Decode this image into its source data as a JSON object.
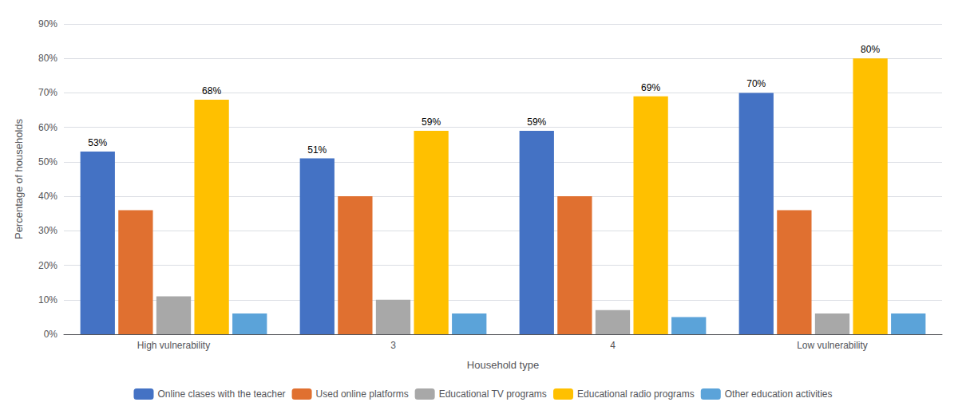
{
  "chart_data": {
    "type": "bar",
    "categories": [
      "High vulnerability",
      "3",
      "4",
      "Low vulnerability"
    ],
    "series": [
      {
        "name": "Online clases with the teacher",
        "color": "#4472C4",
        "values": [
          53,
          51,
          59,
          70
        ],
        "data_labels": true,
        "value_labels": [
          "53%",
          "51%",
          "59%",
          "70%"
        ]
      },
      {
        "name": "Used online platforms",
        "color": "#E07030",
        "values": [
          36,
          40,
          40,
          36
        ],
        "data_labels": false
      },
      {
        "name": "Educational TV programs",
        "color": "#A8A8A8",
        "values": [
          11,
          10,
          7,
          6
        ],
        "data_labels": false
      },
      {
        "name": "Educational radio programs",
        "color": "#FFC000",
        "values": [
          68,
          59,
          69,
          80
        ],
        "data_labels": true,
        "value_labels": [
          "68%",
          "59%",
          "69%",
          "80%"
        ]
      },
      {
        "name": "Other education activities",
        "color": "#5BA3D9",
        "values": [
          6,
          6,
          5,
          6
        ],
        "data_labels": false
      }
    ],
    "x_label": "Household type",
    "y_label": "Percentage of households",
    "ylim": [
      0,
      90
    ],
    "yticks": [
      {
        "value": 0,
        "label": "0%"
      },
      {
        "value": 10,
        "label": "10%"
      },
      {
        "value": 20,
        "label": "20%"
      },
      {
        "value": 30,
        "label": "30%"
      },
      {
        "value": 40,
        "label": "40%"
      },
      {
        "value": 50,
        "label": "50%"
      },
      {
        "value": 60,
        "label": "60%"
      },
      {
        "value": 70,
        "label": "70%"
      },
      {
        "value": 80,
        "label": "80%"
      },
      {
        "value": 90,
        "label": "90%"
      }
    ],
    "grid": true,
    "legend": "bottom"
  }
}
